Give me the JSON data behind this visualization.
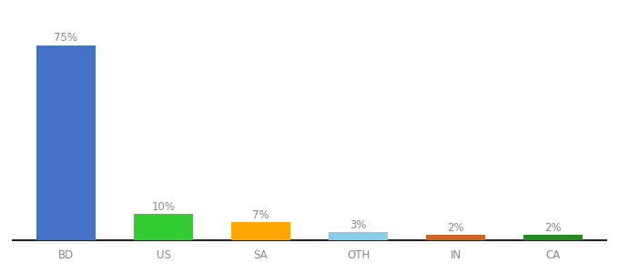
{
  "categories": [
    "BD",
    "US",
    "SA",
    "OTH",
    "IN",
    "CA"
  ],
  "values": [
    75,
    10,
    7,
    3,
    2,
    2
  ],
  "bar_colors": [
    "#4472C4",
    "#33CC33",
    "#FFA500",
    "#87CEEB",
    "#CC6622",
    "#228B22"
  ],
  "labels": [
    "75%",
    "10%",
    "7%",
    "3%",
    "2%",
    "2%"
  ],
  "background_color": "#ffffff",
  "label_fontsize": 8.5,
  "tick_fontsize": 8.5,
  "ylim": [
    0,
    85
  ],
  "bar_width": 0.6,
  "label_color": "#888888",
  "tick_color": "#888888",
  "spine_color": "#222222"
}
